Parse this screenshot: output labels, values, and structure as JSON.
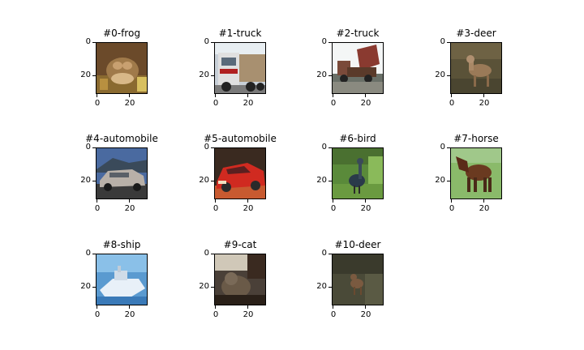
{
  "panels": [
    {
      "title": "#0-frog",
      "scene": "frog",
      "ticks": {
        "y0": "0",
        "y20": "20",
        "x0": "0",
        "x20": "20"
      }
    },
    {
      "title": "#1-truck",
      "scene": "truck",
      "ticks": {
        "y0": "0",
        "y20": "20",
        "x0": "0",
        "x20": "20"
      }
    },
    {
      "title": "#2-truck",
      "scene": "dumptruck",
      "ticks": {
        "y0": "0",
        "y20": "20",
        "x0": "0",
        "x20": "20"
      }
    },
    {
      "title": "#3-deer",
      "scene": "deer",
      "ticks": {
        "y0": "0",
        "y20": "20",
        "x0": "0",
        "x20": "20"
      }
    },
    {
      "title": "#4-automobile",
      "scene": "car-silver",
      "ticks": {
        "y0": "0",
        "y20": "20",
        "x0": "0",
        "x20": "20"
      }
    },
    {
      "title": "#5-automobile",
      "scene": "car-red",
      "ticks": {
        "y0": "0",
        "y20": "20",
        "x0": "0",
        "x20": "20"
      }
    },
    {
      "title": "#6-bird",
      "scene": "bird",
      "ticks": {
        "y0": "0",
        "y20": "20",
        "x0": "0",
        "x20": "20"
      }
    },
    {
      "title": "#7-horse",
      "scene": "horse",
      "ticks": {
        "y0": "0",
        "y20": "20",
        "x0": "0",
        "x20": "20"
      }
    },
    {
      "title": "#8-ship",
      "scene": "ship",
      "ticks": {
        "y0": "0",
        "y20": "20",
        "x0": "0",
        "x20": "20"
      }
    },
    {
      "title": "#9-cat",
      "scene": "cat",
      "ticks": {
        "y0": "0",
        "y20": "20",
        "x0": "0",
        "x20": "20"
      }
    },
    {
      "title": "#10-deer",
      "scene": "deer-dark",
      "ticks": {
        "y0": "0",
        "y20": "20",
        "x0": "0",
        "x20": "20"
      }
    }
  ]
}
